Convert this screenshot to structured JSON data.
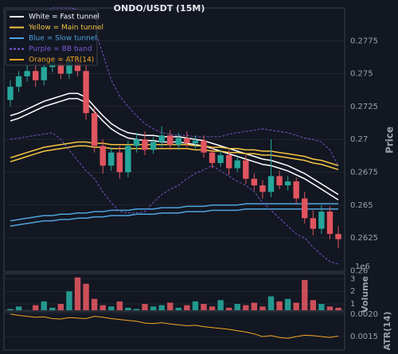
{
  "chart_data": {
    "type": "candlestick",
    "title": "ONDO/USDT (15M)",
    "ylabel": "Price",
    "up_color": "#26a69a",
    "down_color": "#e0555f",
    "grid": true,
    "ylim": [
      0.2599,
      0.28
    ],
    "yticks": [
      0.26,
      0.2625,
      0.265,
      0.2675,
      0.27,
      0.2725,
      0.275,
      0.2775
    ],
    "open": [
      0.273,
      0.274,
      0.2748,
      0.2752,
      0.2745,
      0.2755,
      0.2758,
      0.275,
      0.276,
      0.2752,
      0.272,
      0.2695,
      0.268,
      0.269,
      0.2675,
      0.2695,
      0.27,
      0.2692,
      0.2698,
      0.2703,
      0.2696,
      0.2701,
      0.2697,
      0.2699,
      0.269,
      0.2682,
      0.2688,
      0.2678,
      0.2684,
      0.267,
      0.2665,
      0.266,
      0.2672,
      0.2665,
      0.2668,
      0.2655,
      0.264,
      0.2632,
      0.2645,
      0.2628
    ],
    "high": [
      0.2745,
      0.2752,
      0.2758,
      0.2756,
      0.276,
      0.2763,
      0.2764,
      0.2764,
      0.2766,
      0.2756,
      0.2724,
      0.27,
      0.2694,
      0.2695,
      0.2699,
      0.2705,
      0.2706,
      0.2702,
      0.271,
      0.2707,
      0.2705,
      0.2706,
      0.2703,
      0.2703,
      0.2694,
      0.2692,
      0.2692,
      0.2688,
      0.2688,
      0.2674,
      0.2669,
      0.27,
      0.2676,
      0.2672,
      0.2671,
      0.266,
      0.2646,
      0.265,
      0.2649,
      0.2634
    ],
    "low": [
      0.2725,
      0.2736,
      0.2744,
      0.274,
      0.2741,
      0.2751,
      0.2746,
      0.2746,
      0.2748,
      0.2715,
      0.269,
      0.2674,
      0.2676,
      0.267,
      0.2671,
      0.269,
      0.2688,
      0.2689,
      0.2694,
      0.2692,
      0.2692,
      0.2694,
      0.2693,
      0.2686,
      0.2678,
      0.2679,
      0.2673,
      0.2675,
      0.2666,
      0.2661,
      0.2655,
      0.2656,
      0.2662,
      0.2661,
      0.2651,
      0.2636,
      0.2627,
      0.2628,
      0.2624,
      0.2617
    ],
    "close": [
      0.274,
      0.2748,
      0.2752,
      0.2745,
      0.2755,
      0.2758,
      0.275,
      0.276,
      0.2752,
      0.272,
      0.2695,
      0.268,
      0.269,
      0.2675,
      0.2695,
      0.27,
      0.2692,
      0.2698,
      0.2703,
      0.2696,
      0.2701,
      0.2697,
      0.2699,
      0.269,
      0.2682,
      0.2688,
      0.2678,
      0.2684,
      0.267,
      0.2665,
      0.266,
      0.2672,
      0.2665,
      0.2668,
      0.2655,
      0.264,
      0.2632,
      0.2645,
      0.2628,
      0.2624
    ],
    "lines": [
      {
        "name": "White = Fast tunnel",
        "color": "#ffffff",
        "dashed": false,
        "upper": [
          0.2718,
          0.272,
          0.2723,
          0.2726,
          0.2729,
          0.2731,
          0.2733,
          0.2735,
          0.2735,
          0.2732,
          0.2725,
          0.2718,
          0.2712,
          0.2708,
          0.2705,
          0.2704,
          0.2703,
          0.2703,
          0.2702,
          0.2702,
          0.2702,
          0.2701,
          0.27,
          0.2699,
          0.2697,
          0.2695,
          0.2693,
          0.2691,
          0.2689,
          0.2687,
          0.2685,
          0.2684,
          0.2682,
          0.268,
          0.2677,
          0.2674,
          0.267,
          0.2666,
          0.2662,
          0.2658
        ],
        "lower": [
          0.2714,
          0.2716,
          0.2719,
          0.2722,
          0.2725,
          0.2727,
          0.2729,
          0.2731,
          0.2731,
          0.2728,
          0.2721,
          0.2714,
          0.2708,
          0.2704,
          0.2701,
          0.27,
          0.2699,
          0.2699,
          0.2698,
          0.2698,
          0.2698,
          0.2697,
          0.2696,
          0.2695,
          0.2693,
          0.2691,
          0.2689,
          0.2687,
          0.2685,
          0.2683,
          0.2681,
          0.268,
          0.2678,
          0.2676,
          0.2673,
          0.267,
          0.2666,
          0.2662,
          0.2658,
          0.2654
        ]
      },
      {
        "name": "Yellow = Main tunnel",
        "color": "#f5c542",
        "dashed": false,
        "upper": [
          0.2686,
          0.2688,
          0.269,
          0.2692,
          0.2694,
          0.2695,
          0.2696,
          0.2697,
          0.2698,
          0.2698,
          0.2697,
          0.2697,
          0.2696,
          0.2696,
          0.2696,
          0.2696,
          0.2696,
          0.2696,
          0.2696,
          0.2696,
          0.2696,
          0.2696,
          0.2695,
          0.2695,
          0.2694,
          0.2694,
          0.2693,
          0.2693,
          0.2692,
          0.2692,
          0.2691,
          0.2691,
          0.269,
          0.2689,
          0.2688,
          0.2687,
          0.2685,
          0.2684,
          0.2682,
          0.268
        ],
        "lower": [
          0.2683,
          0.2685,
          0.2687,
          0.2689,
          0.2691,
          0.2692,
          0.2693,
          0.2694,
          0.2695,
          0.2695,
          0.2694,
          0.2694,
          0.2693,
          0.2693,
          0.2693,
          0.2693,
          0.2693,
          0.2693,
          0.2693,
          0.2693,
          0.2693,
          0.2693,
          0.2692,
          0.2692,
          0.2691,
          0.2691,
          0.269,
          0.269,
          0.2689,
          0.2689,
          0.2688,
          0.2688,
          0.2687,
          0.2686,
          0.2685,
          0.2684,
          0.2682,
          0.2681,
          0.2679,
          0.2677
        ]
      },
      {
        "name": "Blue = Slow tunnel",
        "color": "#4fa3e0",
        "dashed": false,
        "upper": [
          0.2638,
          0.2639,
          0.264,
          0.2641,
          0.2642,
          0.2642,
          0.2643,
          0.2643,
          0.2644,
          0.2644,
          0.2645,
          0.2645,
          0.2646,
          0.2646,
          0.2646,
          0.2647,
          0.2647,
          0.2647,
          0.2648,
          0.2648,
          0.2648,
          0.2649,
          0.2649,
          0.2649,
          0.265,
          0.265,
          0.265,
          0.265,
          0.2651,
          0.2651,
          0.2651,
          0.2651,
          0.2651,
          0.2651,
          0.2651,
          0.2651,
          0.2651,
          0.2651,
          0.2651,
          0.2651
        ],
        "lower": [
          0.2634,
          0.2635,
          0.2636,
          0.2637,
          0.2638,
          0.2638,
          0.2639,
          0.2639,
          0.264,
          0.264,
          0.2641,
          0.2641,
          0.2642,
          0.2642,
          0.2642,
          0.2643,
          0.2643,
          0.2643,
          0.2644,
          0.2644,
          0.2644,
          0.2645,
          0.2645,
          0.2645,
          0.2646,
          0.2646,
          0.2646,
          0.2646,
          0.2647,
          0.2647,
          0.2647,
          0.2647,
          0.2647,
          0.2647,
          0.2647,
          0.2647,
          0.2647,
          0.2647,
          0.2647,
          0.2647
        ]
      },
      {
        "name": "Purple = BB band",
        "color": "#7b5cd6",
        "dashed": true,
        "upper": [
          0.2765,
          0.2775,
          0.2785,
          0.2792,
          0.2797,
          0.28,
          0.28,
          0.28,
          0.2799,
          0.2797,
          0.2785,
          0.2765,
          0.2745,
          0.2733,
          0.2725,
          0.2718,
          0.2712,
          0.2708,
          0.2705,
          0.2704,
          0.2703,
          0.2703,
          0.2702,
          0.2702,
          0.2702,
          0.2702,
          0.2704,
          0.2705,
          0.2706,
          0.2707,
          0.2708,
          0.2707,
          0.2706,
          0.2705,
          0.2703,
          0.2701,
          0.27,
          0.2698,
          0.2692,
          0.268
        ],
        "lower": [
          0.27,
          0.2701,
          0.2702,
          0.2703,
          0.2704,
          0.2705,
          0.27,
          0.2692,
          0.2684,
          0.2676,
          0.267,
          0.266,
          0.2652,
          0.2645,
          0.2644,
          0.2644,
          0.2645,
          0.2652,
          0.2658,
          0.2662,
          0.2665,
          0.267,
          0.2674,
          0.2677,
          0.268,
          0.2676,
          0.2672,
          0.2668,
          0.2665,
          0.266,
          0.2652,
          0.2646,
          0.264,
          0.2634,
          0.2628,
          0.2625,
          0.2618,
          0.2612,
          0.2607,
          0.2605
        ]
      }
    ],
    "volume": {
      "ylabel": "Volume",
      "offset_label": "1e6",
      "ylim": [
        0.5,
        3.4
      ],
      "yticks": [
        1,
        2,
        3
      ],
      "values": [
        0.6,
        0.8,
        0.5,
        0.9,
        1.2,
        0.7,
        1.0,
        2.0,
        3.1,
        2.6,
        1.4,
        0.9,
        0.8,
        1.2,
        0.7,
        0.6,
        1.0,
        0.8,
        0.9,
        1.1,
        0.7,
        0.9,
        1.2,
        1.0,
        0.8,
        1.3,
        0.7,
        1.0,
        0.9,
        1.1,
        0.8,
        1.6,
        1.2,
        1.4,
        1.1,
        2.9,
        1.3,
        1.0,
        0.8,
        0.7
      ]
    },
    "atr": {
      "name": "Orange = ATR(14)",
      "ylabel": "ATR(14)",
      "color": "#f5a623",
      "ylim": [
        0.0012,
        0.00205
      ],
      "yticks": [
        {
          "value": 0.0015,
          "label": "0.0015"
        },
        {
          "value": 0.002,
          "label": "0.0020"
        }
      ],
      "values": [
        0.002,
        0.00197,
        0.00195,
        0.00193,
        0.00194,
        0.0019,
        0.00189,
        0.00192,
        0.00191,
        0.0019,
        0.00195,
        0.00193,
        0.0019,
        0.00188,
        0.00186,
        0.00184,
        0.0018,
        0.00179,
        0.00181,
        0.00178,
        0.00176,
        0.00174,
        0.00175,
        0.00172,
        0.0017,
        0.00168,
        0.00166,
        0.00163,
        0.0016,
        0.00156,
        0.0015,
        0.00152,
        0.00148,
        0.00146,
        0.0015,
        0.00153,
        0.00152,
        0.0015,
        0.00148,
        0.00151
      ]
    }
  }
}
